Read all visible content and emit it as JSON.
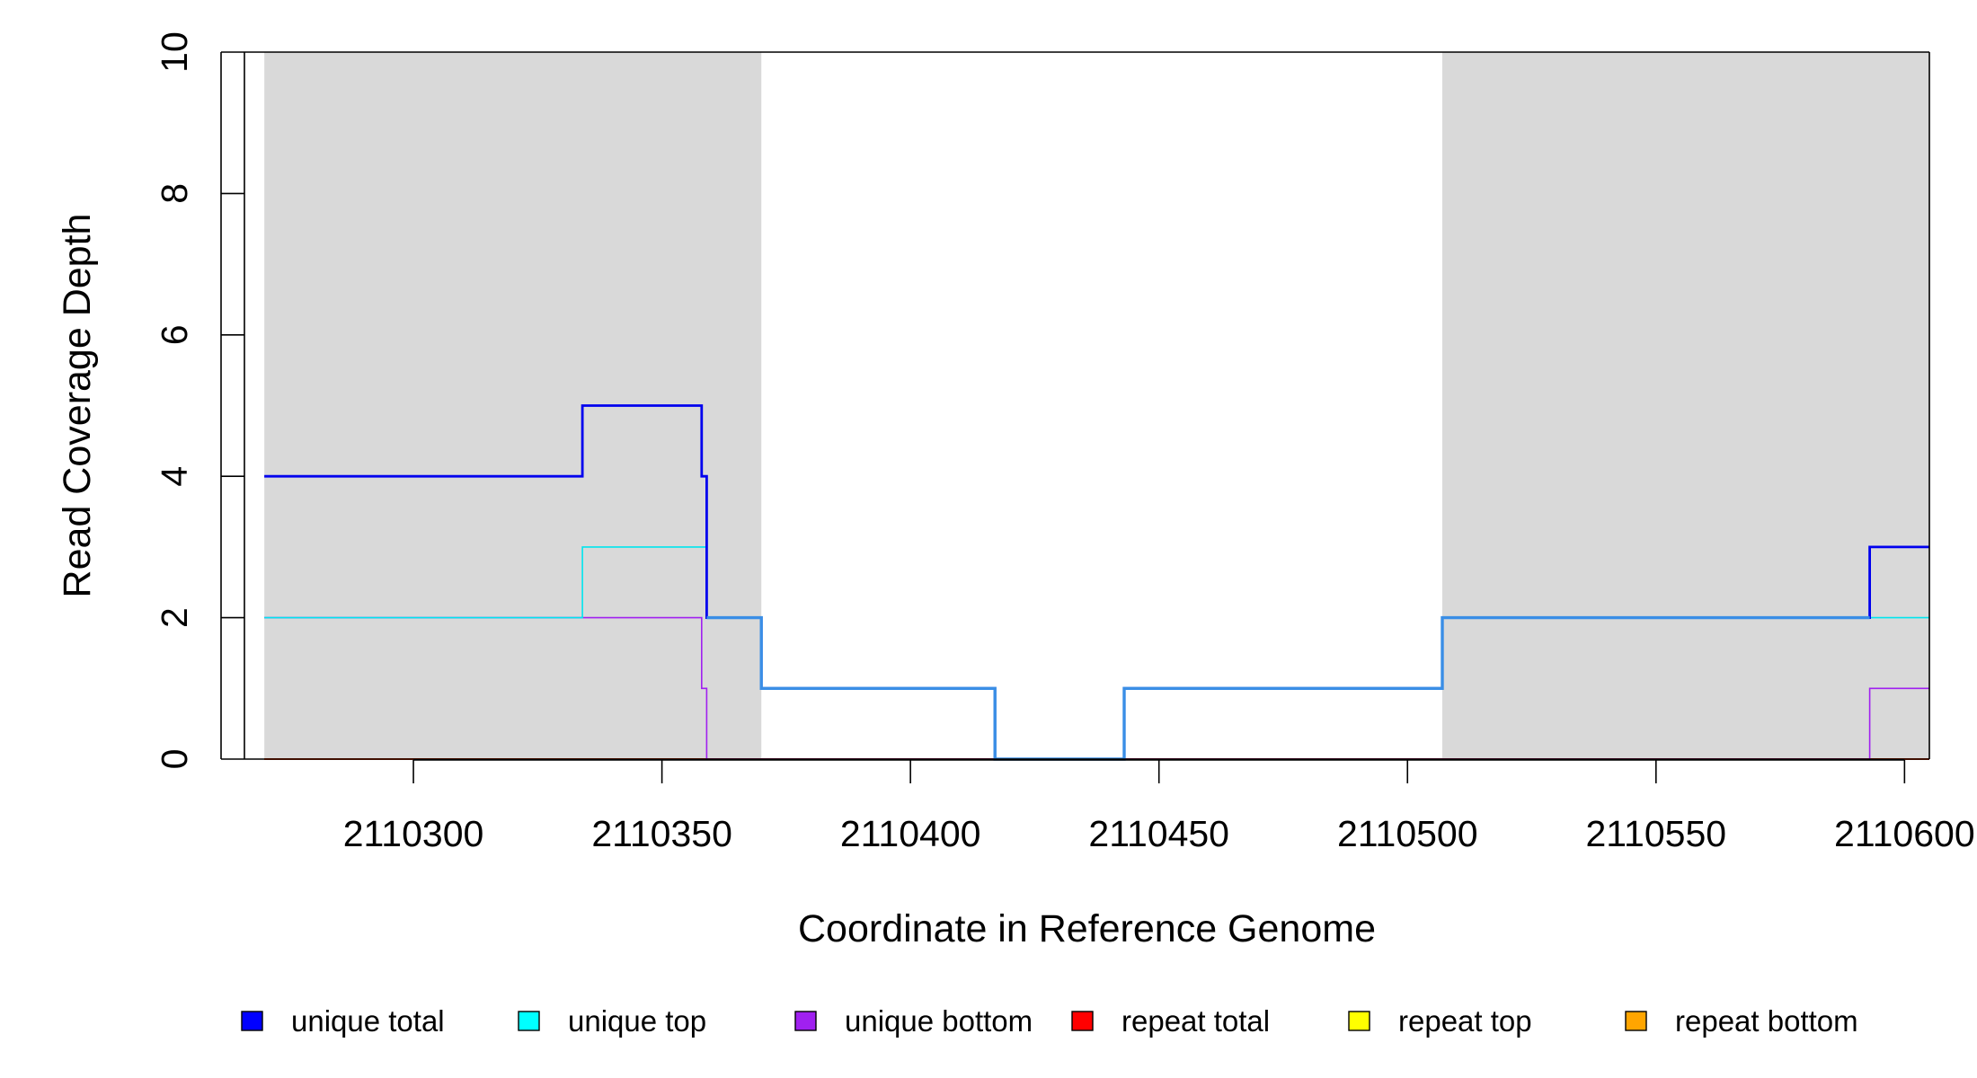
{
  "chart_data": {
    "type": "line",
    "title": "",
    "xlabel": "Coordinate in Reference Genome",
    "ylabel": "Read Coverage Depth",
    "xlim": [
      2110266,
      2110605
    ],
    "ylim": [
      0,
      10
    ],
    "x_ticks": [
      2110300,
      2110350,
      2110400,
      2110450,
      2110500,
      2110550,
      2110600
    ],
    "x_tick_labels": [
      "2110300",
      "2110350",
      "2110400",
      "2110450",
      "2110500",
      "2110550",
      "2110600"
    ],
    "y_ticks": [
      0,
      2,
      4,
      6,
      8,
      10
    ],
    "y_tick_labels": [
      "0",
      "2",
      "4",
      "6",
      "8",
      "10"
    ],
    "shaded_regions": [
      {
        "x": [
          2110270,
          2110370
        ],
        "color": "#d9d9d9"
      },
      {
        "x": [
          2110507,
          2110606
        ],
        "color": "#d9d9d9"
      }
    ],
    "legend_position": "bottom",
    "series": [
      {
        "name": "unique total",
        "color": "#0000ee",
        "steps": [
          {
            "x": [
              2110270,
              2110334
            ],
            "y": 4
          },
          {
            "x": [
              2110334,
              2110358
            ],
            "y": 5
          },
          {
            "x": [
              2110358,
              2110359
            ],
            "y": 4
          },
          {
            "x": [
              2110359,
              2110370
            ],
            "y": 2
          },
          {
            "x": [
              2110370,
              2110417
            ],
            "y": 1
          },
          {
            "x": [
              2110417,
              2110443
            ],
            "y": 0
          },
          {
            "x": [
              2110443,
              2110507
            ],
            "y": 1
          },
          {
            "x": [
              2110507,
              2110593
            ],
            "y": 2
          },
          {
            "x": [
              2110593,
              2110606
            ],
            "y": 3
          }
        ]
      },
      {
        "name": "unique top",
        "color": "#00e5ee",
        "steps": [
          {
            "x": [
              2110270,
              2110334
            ],
            "y": 2
          },
          {
            "x": [
              2110334,
              2110359
            ],
            "y": 3
          },
          {
            "x": [
              2110359,
              2110370
            ],
            "y": 2
          },
          {
            "x": [
              2110370,
              2110417
            ],
            "y": 1
          },
          {
            "x": [
              2110417,
              2110443
            ],
            "y": 0
          },
          {
            "x": [
              2110443,
              2110507
            ],
            "y": 1
          },
          {
            "x": [
              2110507,
              2110606
            ],
            "y": 2
          }
        ]
      },
      {
        "name": "unique bottom",
        "color": "#a020f0",
        "steps": [
          {
            "x": [
              2110270,
              2110358
            ],
            "y": 2
          },
          {
            "x": [
              2110358,
              2110359
            ],
            "y": 1
          },
          {
            "x": [
              2110359,
              2110593
            ],
            "y": 0
          },
          {
            "x": [
              2110593,
              2110606
            ],
            "y": 1
          }
        ]
      },
      {
        "name": "repeat total",
        "color": "#ff0000",
        "steps": [
          {
            "x": [
              2110270,
              2110606
            ],
            "y": 0
          }
        ]
      },
      {
        "name": "repeat top",
        "color": "#ffff00",
        "steps": [
          {
            "x": [
              2110270,
              2110606
            ],
            "y": 0
          }
        ]
      },
      {
        "name": "repeat bottom",
        "color": "#ffa500",
        "steps": [
          {
            "x": [
              2110270,
              2110606
            ],
            "y": 0
          }
        ]
      }
    ],
    "overlay_line": {
      "color": "#3a8ee6",
      "steps": [
        {
          "x": [
            2110359,
            2110370
          ],
          "y": 2
        },
        {
          "x": [
            2110370,
            2110417
          ],
          "y": 1
        },
        {
          "x": [
            2110417,
            2110443
          ],
          "y": 0
        },
        {
          "x": [
            2110443,
            2110507
          ],
          "y": 1
        },
        {
          "x": [
            2110507,
            2110593
          ],
          "y": 2
        }
      ]
    },
    "legend": [
      {
        "label": "unique total",
        "color": "#0000ff"
      },
      {
        "label": "unique top",
        "color": "#00ffff"
      },
      {
        "label": "unique bottom",
        "color": "#a020f0"
      },
      {
        "label": "repeat total",
        "color": "#ff0000"
      },
      {
        "label": "repeat top",
        "color": "#ffff00"
      },
      {
        "label": "repeat bottom",
        "color": "#ffa500"
      }
    ]
  }
}
